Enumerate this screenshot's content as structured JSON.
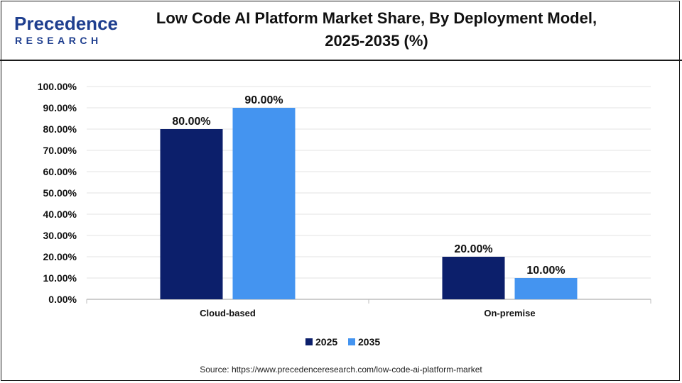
{
  "brand": {
    "name_top": "Precedence",
    "name_bottom": "RESEARCH",
    "color": "#1f3f8f"
  },
  "header": {
    "title_line1": "Low Code AI Platform Market Share, By Deployment Model,",
    "title_line2": "2025-2035 (%)"
  },
  "footer": {
    "source": "Source: https://www.precedenceresearch.com/low-code-ai-platform-market"
  },
  "chart_data": {
    "type": "bar",
    "categories": [
      "Cloud-based",
      "On-premise"
    ],
    "series": [
      {
        "name": "2025",
        "values": [
          80,
          20
        ],
        "labels": [
          "80.00%",
          "20.00%"
        ],
        "color": "#0c1f6b"
      },
      {
        "name": "2035",
        "values": [
          90,
          10
        ],
        "labels": [
          "90.00%",
          "10.00%"
        ],
        "color": "#4494f0"
      }
    ],
    "ylim": [
      0,
      100
    ],
    "y_ticks": [
      "0.00%",
      "10.00%",
      "20.00%",
      "30.00%",
      "40.00%",
      "50.00%",
      "60.00%",
      "70.00%",
      "80.00%",
      "90.00%",
      "100.00%"
    ],
    "grid": true,
    "legend_position": "bottom-center",
    "title": "Low Code AI Platform Market Share, By Deployment Model, 2025-2035 (%)"
  }
}
